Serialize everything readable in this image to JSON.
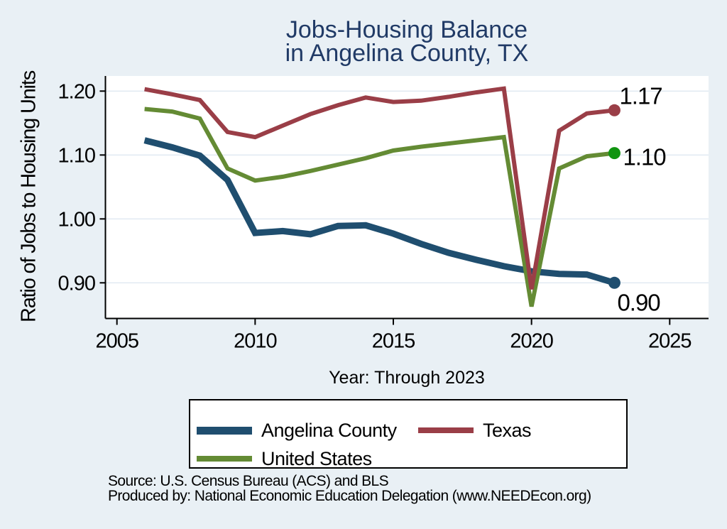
{
  "title": {
    "line1": "Jobs-Housing Balance",
    "line2": "in Angelina County, TX"
  },
  "chart_data": {
    "type": "line",
    "x": [
      2006,
      2007,
      2008,
      2009,
      2010,
      2011,
      2012,
      2013,
      2014,
      2015,
      2016,
      2017,
      2018,
      2019,
      2020,
      2021,
      2022,
      2023
    ],
    "series": [
      {
        "name": "Angelina County",
        "color": "#1f4e6f",
        "width": 9,
        "values": [
          1.123,
          1.112,
          1.099,
          1.061,
          0.978,
          0.981,
          0.976,
          0.989,
          0.99,
          0.977,
          0.961,
          0.947,
          0.936,
          0.926,
          0.918,
          0.914,
          0.913,
          0.9
        ]
      },
      {
        "name": "Texas",
        "color": "#9a3e47",
        "width": 6,
        "values": [
          1.203,
          1.195,
          1.186,
          1.136,
          1.128,
          1.146,
          1.164,
          1.178,
          1.19,
          1.183,
          1.185,
          1.191,
          1.198,
          1.204,
          0.89,
          1.138,
          1.165,
          1.17
        ]
      },
      {
        "name": "United States",
        "color": "#648b34",
        "width": 6,
        "values": [
          1.172,
          1.168,
          1.157,
          1.079,
          1.06,
          1.066,
          1.075,
          1.085,
          1.095,
          1.107,
          1.113,
          1.118,
          1.123,
          1.128,
          0.863,
          1.079,
          1.098,
          1.103
        ]
      }
    ],
    "end_markers": [
      {
        "series_index": 1,
        "label": "1.17",
        "dot_color": "#9a3e47"
      },
      {
        "series_index": 2,
        "label": "1.10",
        "dot_color": "#109410"
      },
      {
        "series_index": 0,
        "label": "0.90",
        "dot_color": "#1f4e6f"
      }
    ],
    "title": "Jobs-Housing Balance in Angelina County, TX",
    "xlabel": "Year: Through 2023",
    "ylabel": "Ratio of Jobs to Housing Units",
    "x_ticks": [
      "2005",
      "2010",
      "2015",
      "2020",
      "2025"
    ],
    "y_ticks": [
      "1.20",
      "1.10",
      "1.00",
      "0.90"
    ],
    "xlim": [
      2005,
      2026.4
    ],
    "ylim": [
      0.845,
      1.215
    ],
    "grid": "horizontal",
    "legend_position": "bottom"
  },
  "legend": {
    "items": [
      {
        "label": "Angelina County"
      },
      {
        "label": "Texas"
      },
      {
        "label": "United States"
      }
    ]
  },
  "footer": {
    "source_line": "Source: U.S. Census Bureau (ACS) and BLS",
    "produced_line": "Produced by: National Economic Education Delegation (www.NEEDEcon.org)"
  },
  "colors": {
    "background": "#e9f0f5",
    "plot_background": "#ffffff",
    "grid": "#dfe9f1",
    "axis": "#000000",
    "title_text": "#203a66",
    "label_text": "#000000"
  }
}
